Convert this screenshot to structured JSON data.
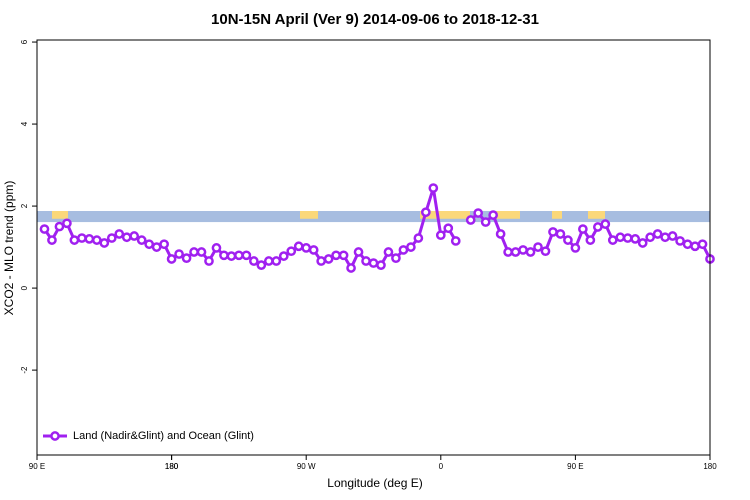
{
  "chart_data": {
    "type": "line",
    "title": "10N-15N April (Ver 9)   2014-09-06 to 2018-12-31",
    "x_label": "Longitude (deg E)",
    "y_label": "XCO2 - MLO trend (ppm)",
    "xlim": [
      90,
      540
    ],
    "xticks": [
      {
        "value": 90,
        "label": "90 E"
      },
      180,
      {
        "value": 270,
        "label": "90 W"
      },
      {
        "value": 360,
        "label": "0"
      },
      {
        "value": 450,
        "label": "90 E"
      },
      180,
      {
        "value": 540,
        "label": "180"
      }
    ],
    "ylim": [
      -4.07,
      6.05
    ],
    "yticks": [
      -2,
      0,
      2,
      4,
      6
    ],
    "band": [
      1.61,
      1.88
    ],
    "legend": "bottom-left",
    "x": [
      95,
      100,
      105,
      110,
      115,
      120,
      125,
      130,
      135,
      140,
      145,
      150,
      155,
      160,
      165,
      170,
      175,
      180,
      185,
      190,
      195,
      200,
      205,
      210,
      215,
      220,
      225,
      230,
      235,
      240,
      245,
      250,
      255,
      260,
      265,
      270,
      275,
      280,
      285,
      290,
      295,
      300,
      305,
      310,
      315,
      320,
      325,
      330,
      335,
      340,
      345,
      350,
      355,
      360,
      365,
      370,
      375,
      380,
      385,
      390,
      395,
      400,
      405,
      410,
      415,
      420,
      425,
      430,
      435,
      440,
      445,
      450,
      455,
      460,
      465,
      470,
      475,
      480,
      485,
      490,
      495,
      500,
      505,
      510,
      515,
      520,
      525,
      530,
      535,
      540
    ],
    "series": [
      {
        "name": "Land (Nadir&Glint) and Ocean (Glint)",
        "color": "#a020f0",
        "values": [
          1.44,
          1.17,
          1.5,
          1.58,
          1.17,
          1.22,
          1.2,
          1.17,
          1.1,
          1.22,
          1.32,
          1.24,
          1.27,
          1.17,
          1.07,
          1.0,
          1.07,
          0.71,
          0.83,
          0.73,
          0.88,
          0.88,
          0.66,
          0.98,
          0.8,
          0.78,
          0.8,
          0.8,
          0.66,
          0.56,
          0.66,
          0.66,
          0.78,
          0.9,
          1.02,
          0.98,
          0.93,
          0.66,
          0.71,
          0.8,
          0.8,
          0.49,
          0.88,
          0.66,
          0.61,
          0.56,
          0.88,
          0.73,
          0.93,
          1.0,
          1.22,
          1.85,
          2.44,
          1.29,
          1.46,
          1.15,
          null,
          1.66,
          1.83,
          1.61,
          1.78,
          1.32,
          0.88,
          0.88,
          0.93,
          0.88,
          1.0,
          0.9,
          1.37,
          1.32,
          1.17,
          0.98,
          1.44,
          1.17,
          1.49,
          1.56,
          1.17,
          1.24,
          1.22,
          1.2,
          1.1,
          1.24,
          1.32,
          1.24,
          1.27,
          1.15,
          1.07,
          1.02,
          1.07,
          0.71
        ]
      }
    ]
  }
}
